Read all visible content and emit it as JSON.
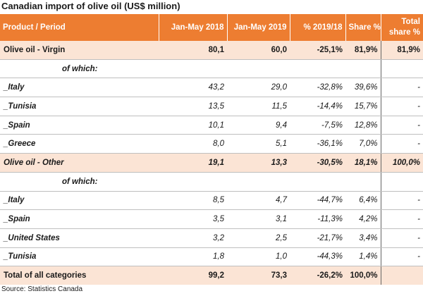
{
  "title": "Canadian import of olive oil (US$ million)",
  "header": {
    "product": "Product / Period",
    "col1": "Jan-May 2018",
    "col2": "Jan-May 2019",
    "col3": "% 2019/18",
    "col4": "Share %",
    "col5_line1": "Total",
    "col5_line2": "share %"
  },
  "rows": [
    {
      "label": "Olive oil - Virgin",
      "v2018": "80,1",
      "v2019": "60,0",
      "pct": "-25,1%",
      "share": "81,9%",
      "total": "81,9%"
    },
    {
      "label": "of which:",
      "v2018": "",
      "v2019": "",
      "pct": "",
      "share": "",
      "total": ""
    },
    {
      "label": "_Italy",
      "v2018": "43,2",
      "v2019": "29,0",
      "pct": "-32,8%",
      "share": "39,6%",
      "total": "-"
    },
    {
      "label": "_Tunisia",
      "v2018": "13,5",
      "v2019": "11,5",
      "pct": "-14,4%",
      "share": "15,7%",
      "total": "-"
    },
    {
      "label": "_Spain",
      "v2018": "10,1",
      "v2019": "9,4",
      "pct": "-7,5%",
      "share": "12,8%",
      "total": "-"
    },
    {
      "label": "_Greece",
      "v2018": "8,0",
      "v2019": "5,1",
      "pct": "-36,1%",
      "share": "7,0%",
      "total": "-"
    },
    {
      "label": "Olive oil - Other",
      "v2018": "19,1",
      "v2019": "13,3",
      "pct": "-30,5%",
      "share": "18,1%",
      "total": "100,0%"
    },
    {
      "label": "of which:",
      "v2018": "",
      "v2019": "",
      "pct": "",
      "share": "",
      "total": ""
    },
    {
      "label": "_Italy",
      "v2018": "8,5",
      "v2019": "4,7",
      "pct": "-44,7%",
      "share": "6,4%",
      "total": "-"
    },
    {
      "label": "_Spain",
      "v2018": "3,5",
      "v2019": "3,1",
      "pct": "-11,3%",
      "share": "4,2%",
      "total": "-"
    },
    {
      "label": "_United States",
      "v2018": "3,2",
      "v2019": "2,5",
      "pct": "-21,7%",
      "share": "3,4%",
      "total": "-"
    },
    {
      "label": "_Tunisia",
      "v2018": "1,8",
      "v2019": "1,0",
      "pct": "-44,3%",
      "share": "1,4%",
      "total": "-"
    },
    {
      "label": "Total of all categories",
      "v2018": "99,2",
      "v2019": "73,3",
      "pct": "-26,2%",
      "share": "100,0%",
      "total": ""
    }
  ],
  "source": "Source: Statistics Canada",
  "colors": {
    "header": "#ed7d31",
    "category_row": "#fbe4d5"
  }
}
